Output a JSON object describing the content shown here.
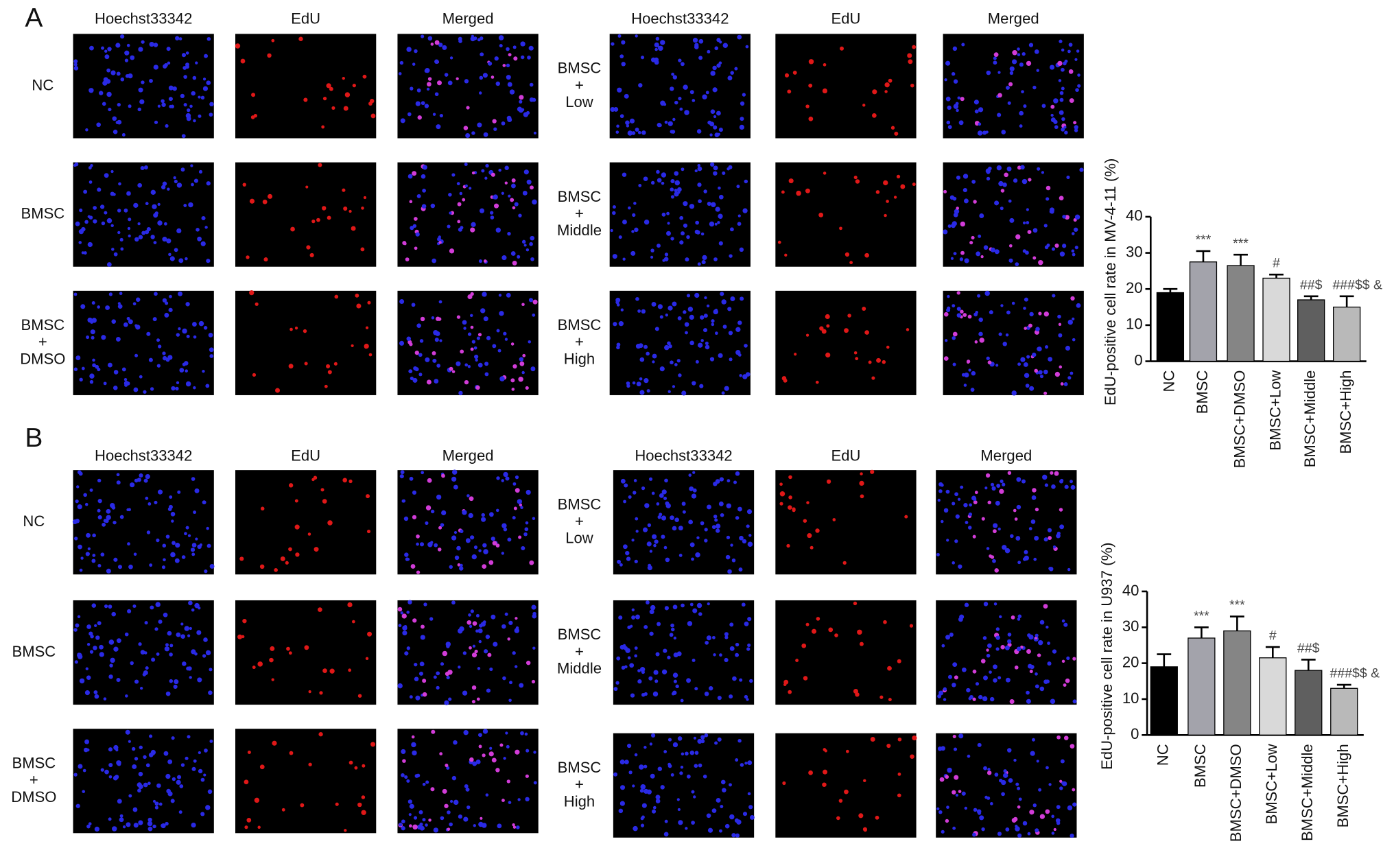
{
  "panels": [
    {
      "label": "A",
      "columns": [
        "Hoechst33342",
        "EdU",
        "Merged",
        "Hoechst33342",
        "EdU",
        "Merged"
      ],
      "rows_left": [
        [
          "NC"
        ],
        [
          "BMSC"
        ],
        [
          "BMSC",
          "+",
          "DMSO"
        ]
      ],
      "rows_right": [
        [
          "BMSC",
          "+",
          "Low"
        ],
        [
          "BMSC",
          "+",
          "Middle"
        ],
        [
          "BMSC",
          "+",
          "High"
        ]
      ]
    },
    {
      "label": "B",
      "columns": [
        "Hoechst33342",
        "EdU",
        "Merged",
        "Hoechst33342",
        "EdU",
        "Merged"
      ],
      "rows_left": [
        [
          "NC"
        ],
        [
          "BMSC"
        ],
        [
          "BMSC",
          "+",
          "DMSO"
        ]
      ],
      "rows_right": [
        [
          "BMSC",
          "+",
          "Low"
        ],
        [
          "BMSC",
          "+",
          "Middle"
        ],
        [
          "BMSC",
          "+",
          "High"
        ]
      ]
    }
  ],
  "chart_data": [
    {
      "type": "bar",
      "y_label": "EdU-positive cell rate in MV-4-11 (%)",
      "categories": [
        "NC",
        "BMSC",
        "BMSC+DMSO",
        "BMSC+Low",
        "BMSC+Middle",
        "BMSC+High"
      ],
      "values": [
        19,
        27.5,
        26.5,
        23,
        17,
        15
      ],
      "errors": [
        1,
        3,
        3,
        1,
        1,
        3
      ],
      "annotations": [
        null,
        "***",
        "***",
        "#",
        "##$",
        "###$$ &"
      ],
      "colors": [
        "#000000",
        "#a3a3ab",
        "#858585",
        "#d9d9d9",
        "#5f5f5f",
        "#b9b9b9"
      ],
      "ylim": [
        0,
        40
      ],
      "yticks": [
        0,
        10,
        20,
        30,
        40
      ]
    },
    {
      "type": "bar",
      "y_label": "EdU-positive cell rate in U937 (%)",
      "categories": [
        "NC",
        "BMSC",
        "BMSC+DMSO",
        "BMSC+Low",
        "BMSC+Middle",
        "BMSC+High"
      ],
      "values": [
        19,
        27,
        29,
        21.5,
        18,
        13
      ],
      "errors": [
        3.5,
        3,
        4,
        3,
        3,
        1
      ],
      "annotations": [
        null,
        "***",
        "***",
        "#",
        "##$",
        "###$$ &"
      ],
      "colors": [
        "#000000",
        "#a3a3ab",
        "#858585",
        "#d9d9d9",
        "#5f5f5f",
        "#b9b9b9"
      ],
      "ylim": [
        0,
        40
      ],
      "yticks": [
        0,
        10,
        20,
        30,
        40
      ]
    }
  ]
}
